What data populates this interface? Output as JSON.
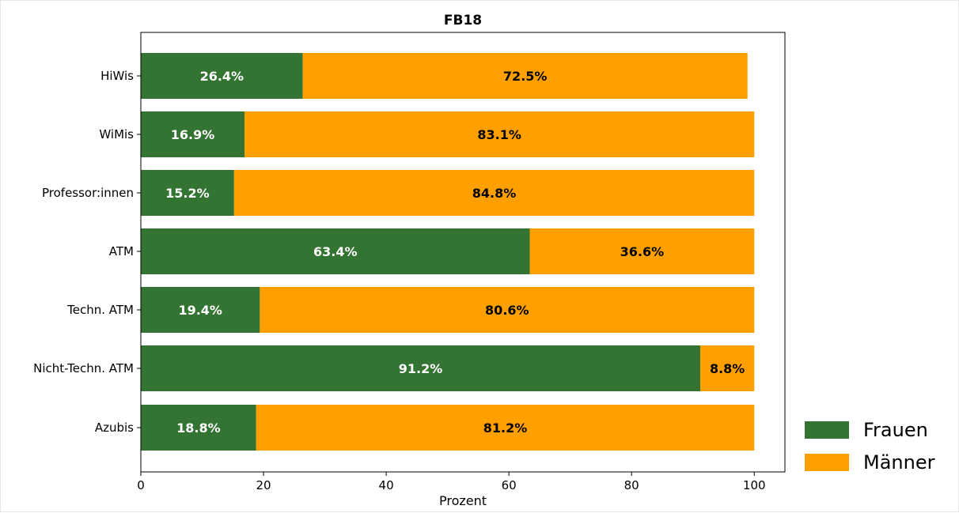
{
  "chart_data": {
    "type": "bar",
    "orientation": "horizontal",
    "stacked": true,
    "title": "FB18",
    "xlabel": "Prozent",
    "ylabel": "",
    "xlim": [
      0,
      105
    ],
    "x_ticks": [
      0,
      20,
      40,
      60,
      80,
      100
    ],
    "grid": false,
    "legend_position": "bottom-right, outside plot",
    "categories": [
      "HiWis",
      "WiMis",
      "Professor:innen",
      "ATM",
      "Techn. ATM",
      "Nicht-Techn. ATM",
      "Azubis"
    ],
    "series": [
      {
        "name": "Frauen",
        "color": "#347433",
        "label_color": "#ffffff",
        "values": [
          26.4,
          16.9,
          15.2,
          63.4,
          19.4,
          91.2,
          18.8
        ],
        "labels": [
          "26.4%",
          "16.9%",
          "15.2%",
          "63.4%",
          "19.4%",
          "91.2%",
          "18.8%"
        ]
      },
      {
        "name": "Männer",
        "color": "#ffa000",
        "label_color": "#000000",
        "values": [
          72.5,
          83.1,
          84.8,
          36.6,
          80.6,
          8.8,
          81.2
        ],
        "labels": [
          "72.5%",
          "83.1%",
          "84.8%",
          "36.6%",
          "80.6%",
          "8.8%",
          "81.2%"
        ]
      }
    ]
  }
}
